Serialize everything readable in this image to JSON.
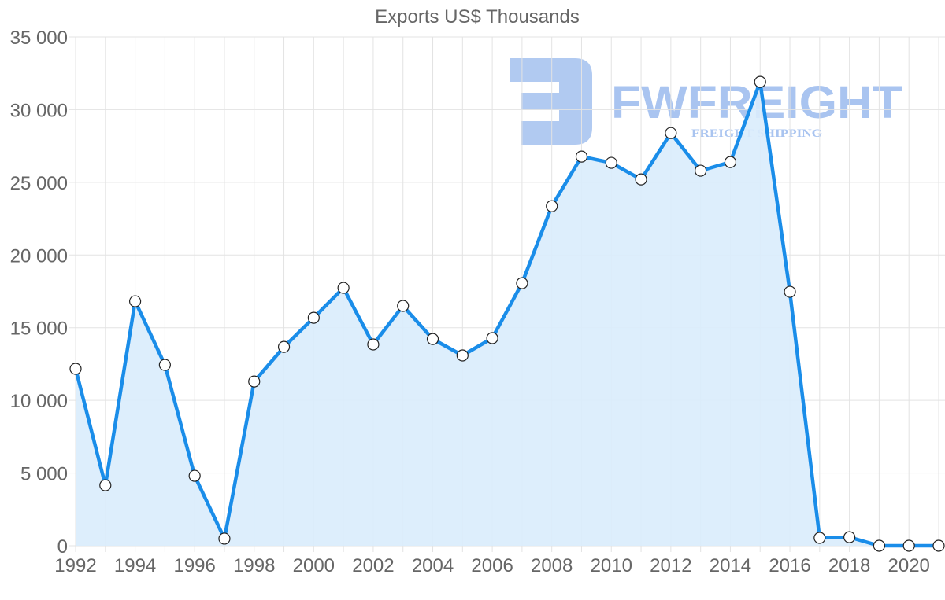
{
  "chart_data": {
    "type": "area",
    "title": "Exports US$ Thousands",
    "xlabel": "",
    "ylabel": "",
    "ylim": [
      0,
      35000
    ],
    "grid": true,
    "legend": null,
    "y_ticks": [
      "35 000",
      "30 000",
      "25 000",
      "20 000",
      "15 000",
      "10 000",
      "5 000",
      "0"
    ],
    "y_tick_values": [
      35000,
      30000,
      25000,
      20000,
      15000,
      10000,
      5000,
      0
    ],
    "x_ticks": [
      "1992",
      "1994",
      "1996",
      "1998",
      "2000",
      "2002",
      "2004",
      "2006",
      "2008",
      "2010",
      "2012",
      "2014",
      "2016",
      "2018",
      "2020"
    ],
    "categories": [
      1992,
      1993,
      1994,
      1995,
      1996,
      1997,
      1998,
      1999,
      2000,
      2001,
      2002,
      2003,
      2004,
      2005,
      2006,
      2007,
      2008,
      2009,
      2010,
      2011,
      2012,
      2013,
      2014,
      2015,
      2016,
      2017,
      2018,
      2019,
      2020,
      2021
    ],
    "series": [
      {
        "name": "Exports",
        "color": "#1a8de9",
        "fill": "#d9ecfc",
        "values": [
          12170,
          4160,
          16820,
          12440,
          4810,
          490,
          11300,
          13680,
          15680,
          17740,
          13850,
          16500,
          14220,
          13090,
          14280,
          18060,
          23360,
          26770,
          26340,
          25200,
          28390,
          25800,
          26390,
          31910,
          17470,
          540,
          590,
          0,
          0,
          0
        ]
      }
    ]
  },
  "watermark": {
    "brand": "FWFREIGHT",
    "tagline": "FREIGHT SHIPPING",
    "color": "#a9c4f0"
  }
}
